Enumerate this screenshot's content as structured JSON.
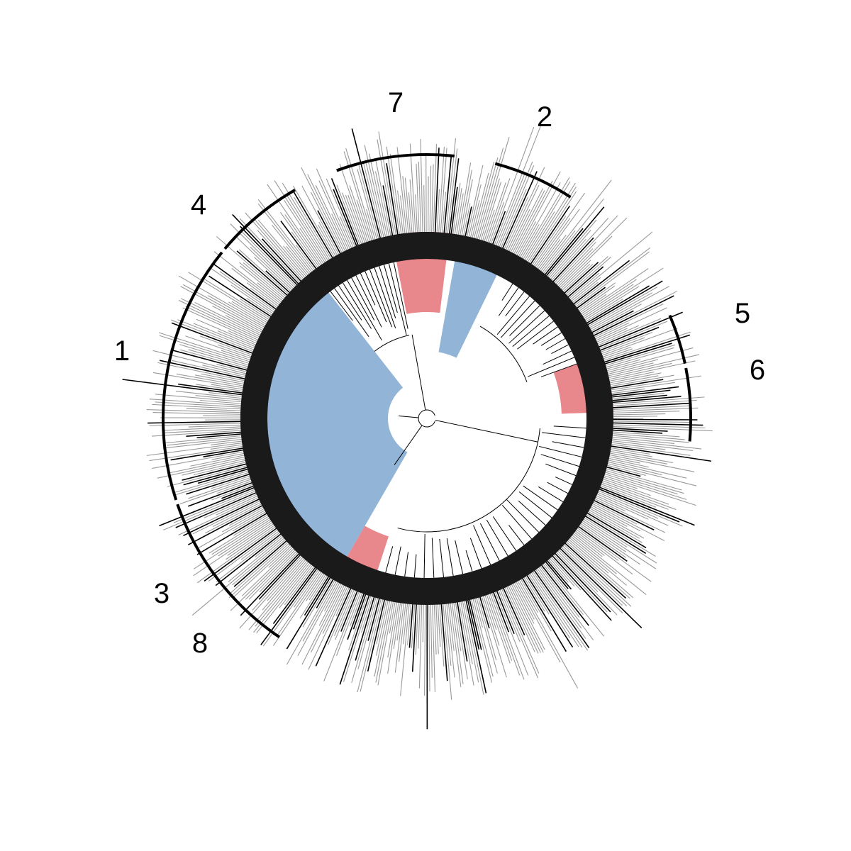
{
  "colors": {
    "background": "#ffffff",
    "branch": "#000000",
    "tip_bar_light": "#999999",
    "tip_bar_dark": "#000000",
    "blue_fill": "#92b4d6",
    "blue_dense": "#1f4e79",
    "red_fill": "#e8878c",
    "red_dense": "#8b1a2a",
    "bracket": "#000000"
  },
  "clade_labels": [
    {
      "id": "1",
      "text": "1"
    },
    {
      "id": "2",
      "text": "2"
    },
    {
      "id": "3",
      "text": "3"
    },
    {
      "id": "4",
      "text": "4"
    },
    {
      "id": "5",
      "text": "5"
    },
    {
      "id": "6",
      "text": "6"
    },
    {
      "id": "7",
      "text": "7"
    },
    {
      "id": "8",
      "text": "8"
    }
  ]
}
